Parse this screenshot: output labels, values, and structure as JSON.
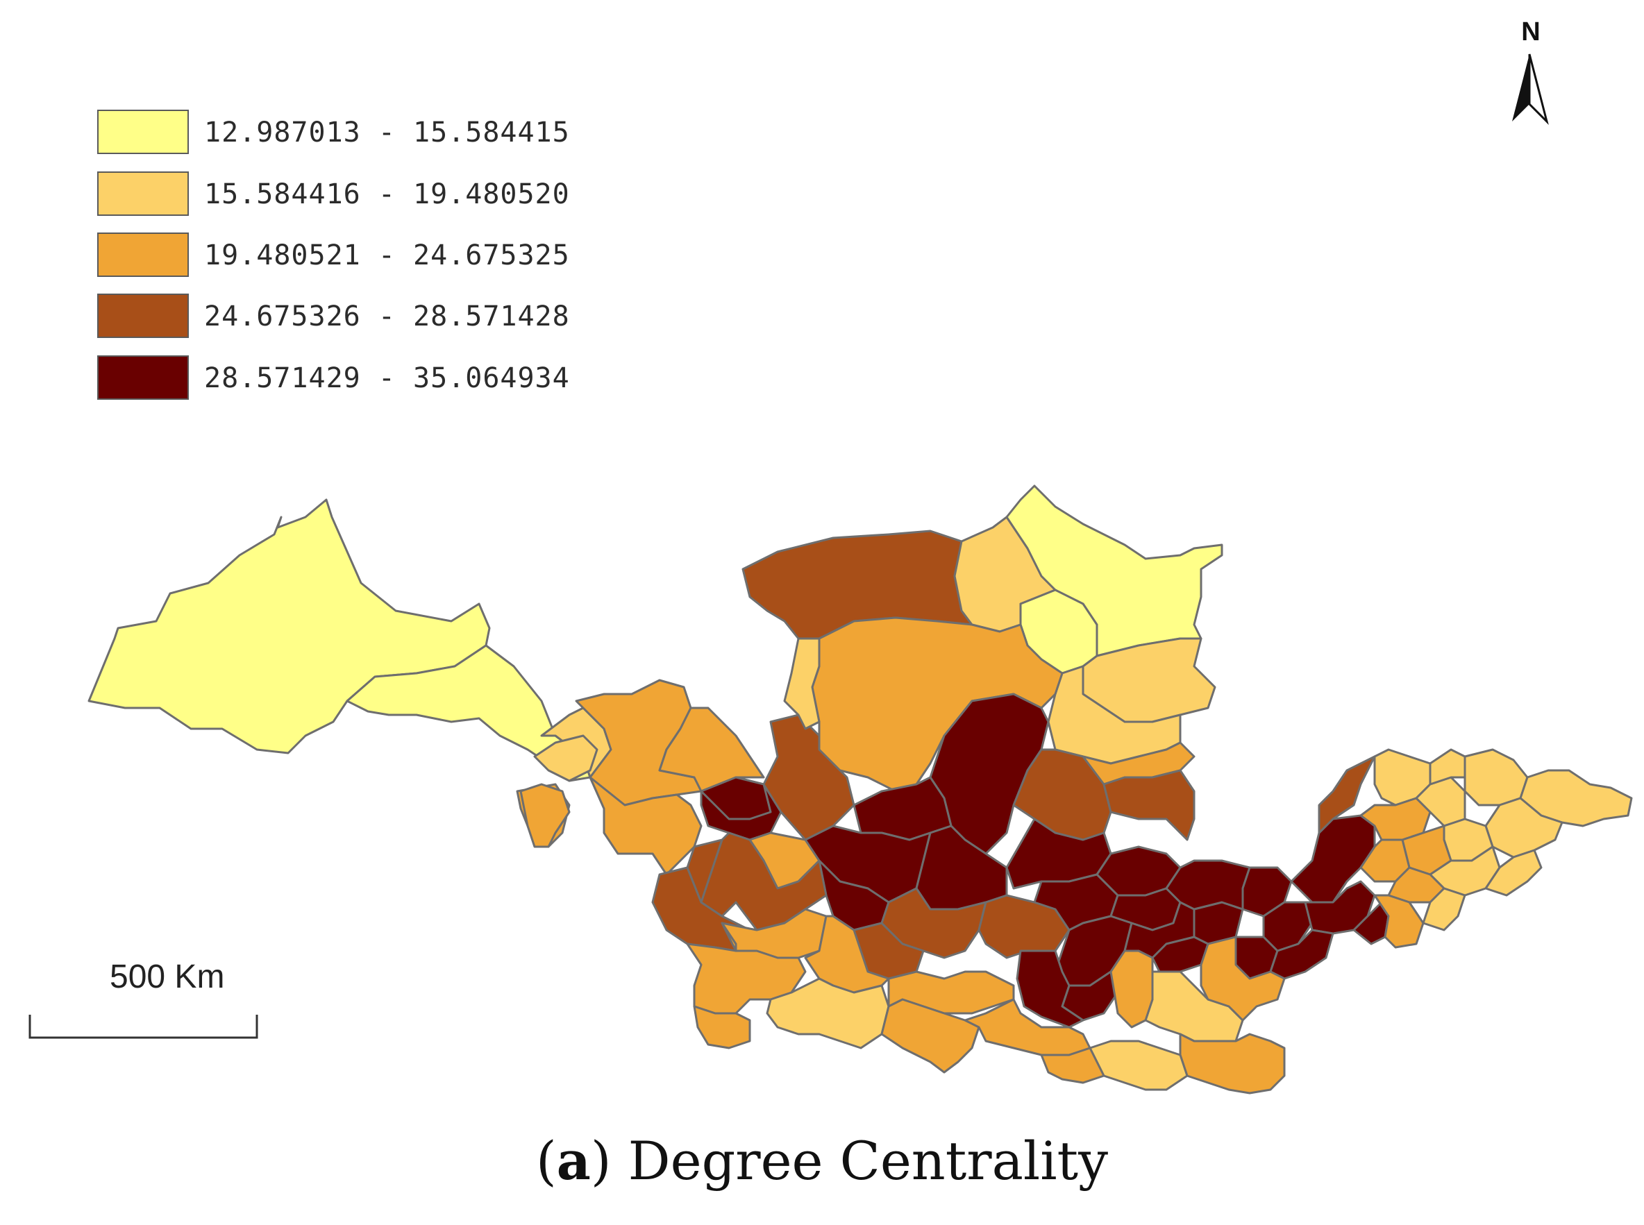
{
  "legend": {
    "classes": [
      {
        "label": "12.987013 - 15.584415",
        "color": "#ffff88"
      },
      {
        "label": "15.584416 - 19.480520",
        "color": "#fcd168"
      },
      {
        "label": "19.480521 - 24.675325",
        "color": "#f0a535"
      },
      {
        "label": "24.675326 - 28.571428",
        "color": "#a84f18"
      },
      {
        "label": "28.571429 - 35.064934",
        "color": "#690000"
      }
    ]
  },
  "north_arrow": {
    "letter": "N"
  },
  "scale_bar": {
    "label": "500 Km"
  },
  "caption": {
    "letter": "a",
    "text": "Degree Centrality"
  },
  "colors": {
    "boundary": "#6e6e6e",
    "background": "#ffffff"
  }
}
